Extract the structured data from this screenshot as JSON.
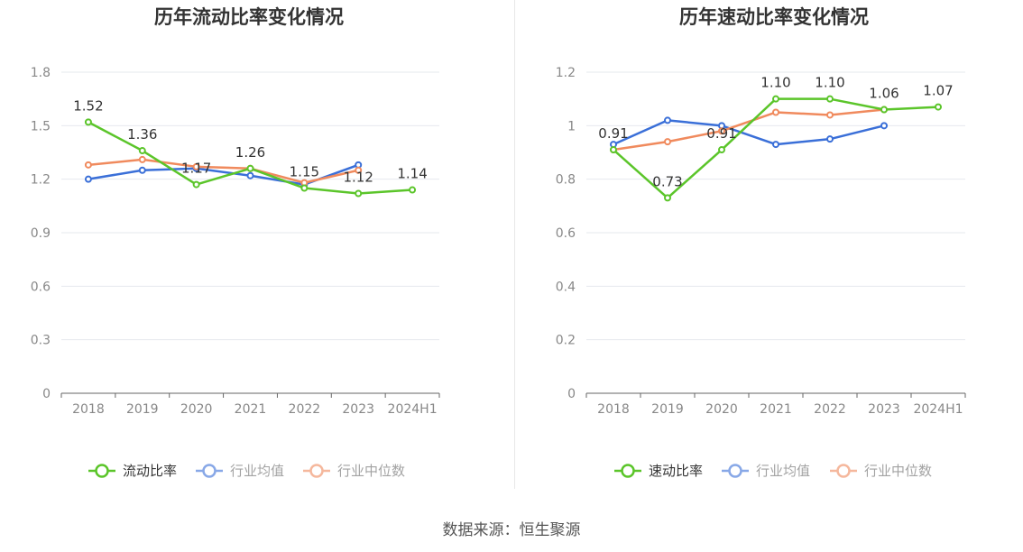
{
  "source_label": "数据来源：恒生聚源",
  "chart_data": [
    {
      "type": "line",
      "title": "历年流动比率变化情况",
      "categories": [
        "2018",
        "2019",
        "2020",
        "2021",
        "2022",
        "2023",
        "2024H1"
      ],
      "y_ticks": [
        "0",
        "0.3",
        "0.6",
        "0.9",
        "1.2",
        "1.5",
        "1.8"
      ],
      "ylim": [
        0,
        1.8
      ],
      "grid": true,
      "legend_position": "bottom",
      "series": [
        {
          "name": "流动比率",
          "color": "#5bc52a",
          "labels": true,
          "values": [
            1.52,
            1.36,
            1.17,
            1.26,
            1.15,
            1.12,
            1.14
          ],
          "label_text": [
            "1.52",
            "1.36",
            "1.17",
            "1.26",
            "1.15",
            "1.12",
            "1.14"
          ]
        },
        {
          "name": "行业均值",
          "color": "#3a6fd8",
          "labels": false,
          "values": [
            1.2,
            1.25,
            1.26,
            1.22,
            1.17,
            1.28,
            null
          ]
        },
        {
          "name": "行业中位数",
          "color": "#f08a5d",
          "labels": false,
          "values": [
            1.28,
            1.31,
            1.27,
            1.26,
            1.18,
            1.25,
            null
          ]
        }
      ]
    },
    {
      "type": "line",
      "title": "历年速动比率变化情况",
      "categories": [
        "2018",
        "2019",
        "2020",
        "2021",
        "2022",
        "2023",
        "2024H1"
      ],
      "y_ticks": [
        "0",
        "0.2",
        "0.4",
        "0.6",
        "0.8",
        "1",
        "1.2"
      ],
      "ylim": [
        0,
        1.2
      ],
      "grid": true,
      "legend_position": "bottom",
      "series": [
        {
          "name": "速动比率",
          "color": "#5bc52a",
          "labels": true,
          "values": [
            0.91,
            0.73,
            0.91,
            1.1,
            1.1,
            1.06,
            1.07
          ],
          "label_text": [
            "0.91",
            "0.73",
            "0.91",
            "1.10",
            "1.10",
            "1.06",
            "1.07"
          ]
        },
        {
          "name": "行业均值",
          "color": "#3a6fd8",
          "labels": false,
          "values": [
            0.93,
            1.02,
            1.0,
            0.93,
            0.95,
            1.0,
            null
          ]
        },
        {
          "name": "行业中位数",
          "color": "#f08a5d",
          "labels": false,
          "values": [
            0.91,
            0.94,
            0.98,
            1.05,
            1.04,
            1.06,
            null
          ]
        }
      ]
    }
  ]
}
